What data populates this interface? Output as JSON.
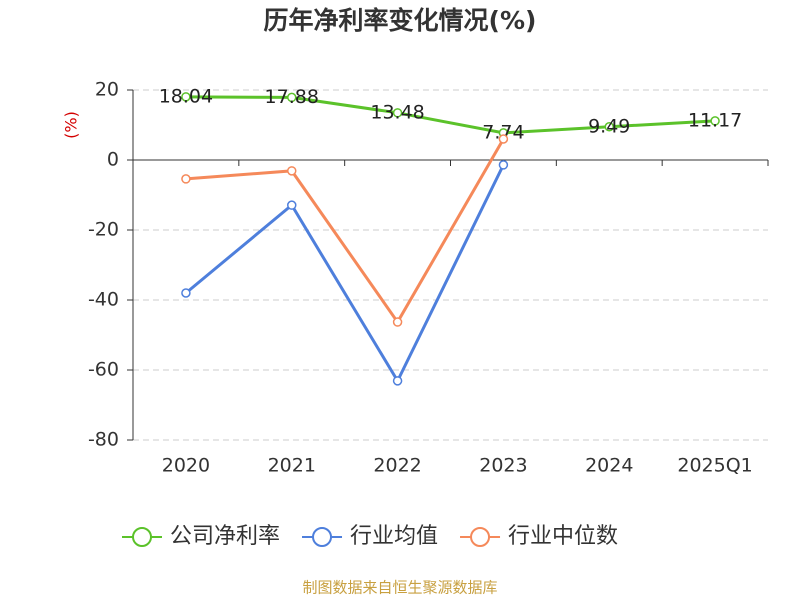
{
  "chart_data": {
    "type": "line",
    "title": "历年净利率变化情况(%)",
    "y_label": "(%)",
    "categories": [
      "2020",
      "2021",
      "2022",
      "2023",
      "2024",
      "2025Q1"
    ],
    "series": [
      {
        "name": "公司净利率",
        "color": "#5bc22a",
        "values": [
          18.04,
          17.88,
          13.48,
          7.74,
          9.49,
          11.17
        ],
        "labels": true
      },
      {
        "name": "行业均值",
        "color": "#4e7fdc",
        "values": [
          -38,
          -12.9,
          -63.1,
          -1.4,
          null,
          null
        ],
        "labels": false
      },
      {
        "name": "行业中位数",
        "color": "#f5895a",
        "values": [
          -5.4,
          -3.1,
          -46.3,
          6.0,
          null,
          null
        ],
        "labels": false
      }
    ],
    "ylim": [
      -80,
      20
    ],
    "yticks": [
      -80,
      -60,
      -40,
      -20,
      0,
      20
    ],
    "grid": true,
    "source": "制图数据来自恒生聚源数据库"
  }
}
